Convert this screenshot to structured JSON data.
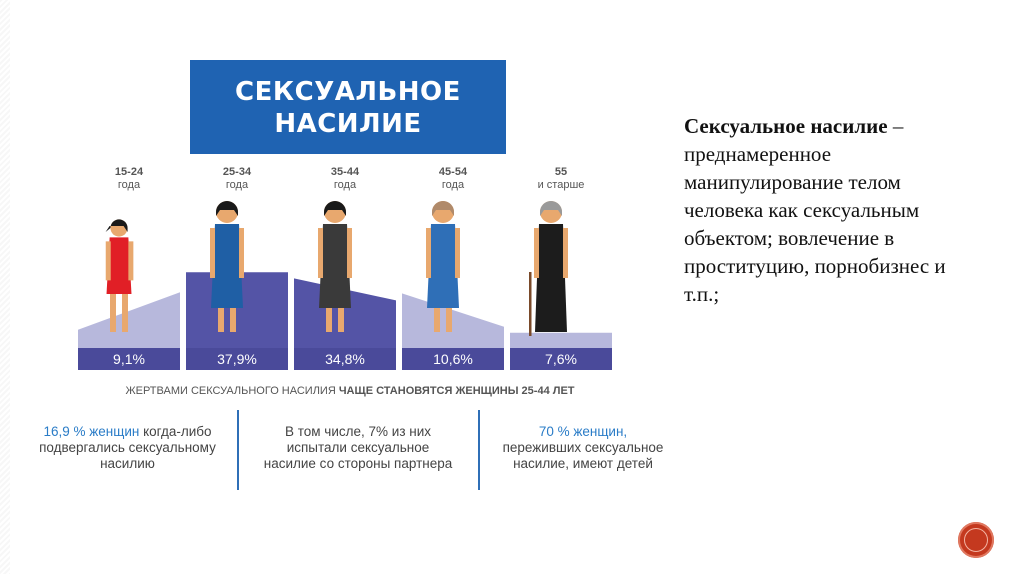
{
  "chart_title_line1": "СЕКСУАЛЬНОЕ",
  "chart_title_line2": "НАСИЛИЕ",
  "chart_data": {
    "type": "bar",
    "title": "СЕКСУАЛЬНОЕ НАСИЛИЕ",
    "categories": [
      {
        "top": "15-24",
        "bottom": "года"
      },
      {
        "top": "25-34",
        "bottom": "года"
      },
      {
        "top": "35-44",
        "bottom": "года"
      },
      {
        "top": "45-54",
        "bottom": "года"
      },
      {
        "top": "55",
        "bottom": "и старше"
      }
    ],
    "values": [
      9.1,
      37.9,
      34.8,
      10.6,
      7.6
    ],
    "value_labels": [
      "9,1%",
      "37,9%",
      "34,8%",
      "10,6%",
      "7,6%"
    ],
    "caption_normal": "ЖЕРТВАМИ СЕКСУАЛЬНОГО НАСИЛИЯ",
    "caption_bold": "ЧАЩЕ СТАНОВЯТСЯ ЖЕНЩИНЫ 25-44 ЛЕТ",
    "colors": {
      "band": "#4a4a9a",
      "area": "#5454a6",
      "area_light": "#b7b8dc",
      "figure_dress": [
        "#e11f26",
        "#1f5fa5",
        "#3a3a3a",
        "#2f6fb7",
        "#1c1c1c"
      ]
    }
  },
  "notes": {
    "n1_highlight": "16,9 % женщин",
    "n1_rest_a": " когда-либо",
    "n1_line2": "подвергались сексуальному",
    "n1_line3": "насилию",
    "n2_line1": "В том числе, 7% из них",
    "n2_line2": "испытали сексуальное",
    "n2_line3": "насилие со стороны партнера",
    "n3_highlight": "70 % женщин,",
    "n3_line2": "переживших  сексуальное",
    "n3_line3": "насилие, имеют детей"
  },
  "definition": {
    "term": "Сексуальное насилие",
    "dash": " – ",
    "text": "преднамеренное манипулирование телом человека как сексуальным объектом; вовлечение в проституцию, порнобизнес и т.п.;"
  }
}
